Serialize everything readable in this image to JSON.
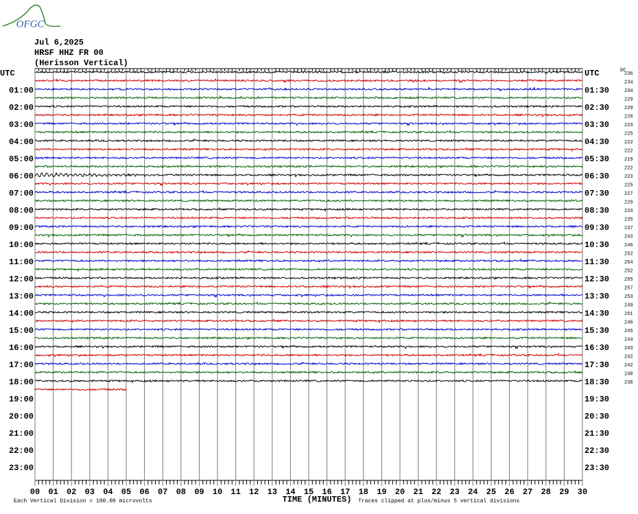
{
  "logo": "OFGC",
  "header": {
    "date": "Jul 6,2025",
    "station": "HRSF HHZ FR 00",
    "description": "(Herisson Vertical)"
  },
  "left_labels": [
    "UTC",
    "01:00",
    "02:00",
    "03:00",
    "04:00",
    "05:00",
    "06:00",
    "07:00",
    "08:00",
    "09:00",
    "10:00",
    "11:00",
    "12:00",
    "13:00",
    "14:00",
    "15:00",
    "16:00",
    "17:00",
    "18:00",
    "19:00",
    "20:00",
    "21:00",
    "22:00",
    "23:00"
  ],
  "right_labels": [
    "UTC",
    "01:30",
    "02:30",
    "03:30",
    "04:30",
    "05:30",
    "06:30",
    "07:30",
    "08:30",
    "09:30",
    "10:30",
    "11:30",
    "12:30",
    "13:30",
    "14:30",
    "15:30",
    "16:30",
    "17:30",
    "18:30",
    "19:30",
    "20:30",
    "21:30",
    "22:30",
    "23:30"
  ],
  "dc_label": "DC",
  "dc_values": [
    236,
    234,
    234,
    229,
    229,
    226,
    223,
    225,
    222,
    222,
    219,
    222,
    223,
    225,
    227,
    229,
    233,
    235,
    237,
    243,
    246,
    252,
    254,
    252,
    255,
    257,
    253,
    249,
    251,
    246,
    245,
    244,
    243,
    242,
    242,
    240,
    236
  ],
  "x_axis": {
    "ticks": [
      "00",
      "01",
      "02",
      "03",
      "04",
      "05",
      "06",
      "07",
      "08",
      "09",
      "10",
      "11",
      "12",
      "13",
      "14",
      "15",
      "16",
      "17",
      "18",
      "19",
      "20",
      "21",
      "22",
      "23",
      "24",
      "25",
      "26",
      "27",
      "28",
      "29",
      "30"
    ],
    "title": "TIME (MINUTES)"
  },
  "footer": {
    "scale_note": "Each Vertical Division =  100.00 microvolts",
    "clip_note": "Traces clipped at plus/minus 5 vertical divisions"
  }
}
